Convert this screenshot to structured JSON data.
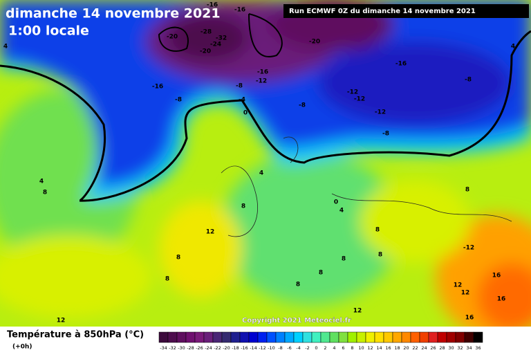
{
  "header": {
    "title": "dimanche 14 novembre 2021",
    "time": "1:00 locale",
    "run": "Run ECMWF 0Z du dimanche 14 novembre 2021"
  },
  "map": {
    "copyright": "Copyright 2021 Meteociel.fr",
    "contour_labels": [
      "-16",
      "-16",
      "-20",
      "-28",
      "-32",
      "-24",
      "-20",
      "-20",
      "4",
      "-16",
      "-8",
      "-16",
      "-12",
      "-16",
      "-8",
      "-4",
      "-8",
      "-12",
      "-12",
      "-8",
      "-12",
      "0",
      "-8",
      "4",
      "4",
      "8",
      "4",
      "8",
      "12",
      "0",
      "4",
      "8",
      "8",
      "-12",
      "8",
      "8",
      "8",
      "8",
      "8",
      "12",
      "12",
      "12",
      "12",
      "16",
      "16",
      "16",
      "8"
    ]
  },
  "legend": {
    "title": "Température à 850hPa (°C)",
    "subtitle": "(+0h)",
    "ticks": [
      "-34",
      "-32",
      "-30",
      "-28",
      "-26",
      "-24",
      "-22",
      "-20",
      "-18",
      "-16",
      "-14",
      "-12",
      "-10",
      "-8",
      "-6",
      "-4",
      "-2",
      "0",
      "2",
      "4",
      "6",
      "8",
      "10",
      "12",
      "14",
      "16",
      "18",
      "20",
      "22",
      "24",
      "26",
      "28",
      "30",
      "32",
      "34",
      "36"
    ],
    "colors": [
      "#3c0a3c",
      "#4d0d4d",
      "#5f0f5f",
      "#701070",
      "#7a1a7a",
      "#6a1f7a",
      "#4a2575",
      "#352a70",
      "#1f1f8f",
      "#1010b0",
      "#0000d0",
      "#0020f0",
      "#0050ff",
      "#0080ff",
      "#00a8ff",
      "#00d0ff",
      "#30e0e0",
      "#40f0c0",
      "#50e890",
      "#60e060",
      "#80e040",
      "#a0f000",
      "#c8f000",
      "#f0f000",
      "#ffe000",
      "#ffc800",
      "#ffa800",
      "#ff8800",
      "#ff6000",
      "#f04000",
      "#e02020",
      "#c00000",
      "#a00000",
      "#800000",
      "#400000",
      "#000000"
    ]
  }
}
